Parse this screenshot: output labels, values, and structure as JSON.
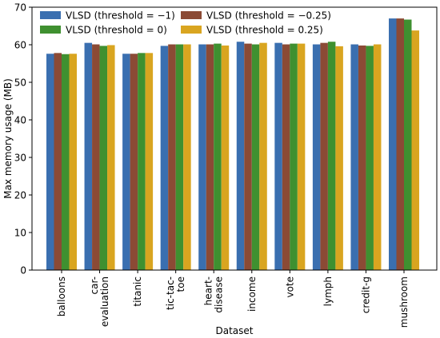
{
  "chart_data": {
    "type": "bar",
    "title": "",
    "xlabel": "Dataset",
    "ylabel": "Max memory usage (MB)",
    "ylim": [
      0,
      70
    ],
    "yticks": [
      0,
      10,
      20,
      30,
      40,
      50,
      60,
      70
    ],
    "grid": false,
    "legend_position": "top-left",
    "legend_columns": 2,
    "categories": [
      "balloons",
      "car-\nevaluation",
      "titanic",
      "tic-tac-\ntoe",
      "heart-\ndisease",
      "income",
      "vote",
      "lymph",
      "credit-g",
      "mushroom"
    ],
    "series": [
      {
        "name": "VLSD (threshold = −1)",
        "color": "#3a6fb0",
        "values": [
          57.6,
          60.5,
          57.6,
          59.7,
          60.1,
          60.8,
          60.5,
          60.1,
          60.1,
          67.0
        ]
      },
      {
        "name": "VLSD (threshold = −0.25)",
        "color": "#8b4a35",
        "values": [
          57.8,
          60.1,
          57.6,
          60.1,
          60.1,
          60.3,
          60.1,
          60.5,
          59.8,
          67.0
        ]
      },
      {
        "name": "VLSD (threshold = 0)",
        "color": "#3f9030",
        "values": [
          57.5,
          59.7,
          57.8,
          60.1,
          60.3,
          60.1,
          60.3,
          60.8,
          59.7,
          66.7
        ]
      },
      {
        "name": "VLSD (threshold = 0.25)",
        "color": "#d9a520",
        "values": [
          57.6,
          59.9,
          57.8,
          60.1,
          59.8,
          60.5,
          60.3,
          59.6,
          60.1,
          63.8
        ]
      }
    ]
  }
}
